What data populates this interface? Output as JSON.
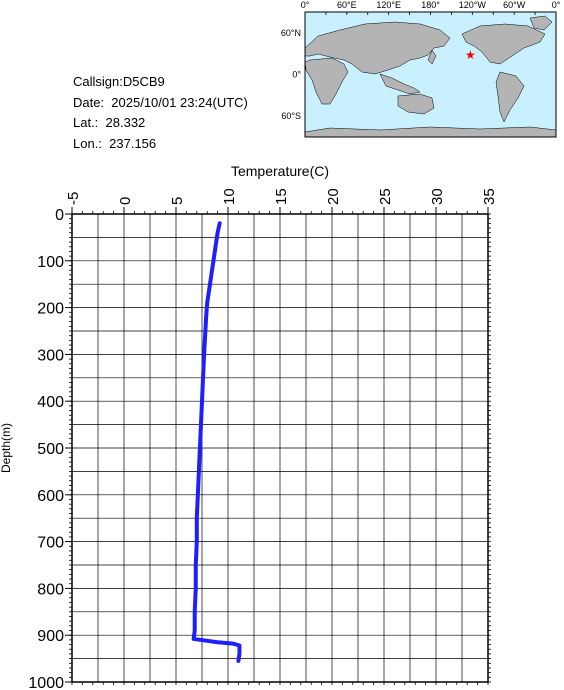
{
  "info": {
    "callsign": "Callsign:D5CB9",
    "date": "Date:  2025/10/01 23:24(UTC)",
    "lat": "Lat.:  28.332",
    "lon": "Lon.:  237.156"
  },
  "map": {
    "lon_labels": [
      "0°",
      "60°E",
      "120°E",
      "180°",
      "120°W",
      "60°W",
      "0°"
    ],
    "lat_labels": [
      "60°N",
      "0°",
      "60°S"
    ],
    "station_marker": {
      "lat": 28.332,
      "lon": 237.156,
      "symbol": "★"
    },
    "colors": {
      "ocean": "#c8f0ff",
      "land": "#b4b4b4",
      "marker": "#ff0000"
    }
  },
  "chart_data": {
    "type": "line",
    "xlabel": "Temperature(C)",
    "ylabel": "Depth(m)",
    "xlim": [
      -5,
      35
    ],
    "ylim": [
      0,
      1000
    ],
    "x_ticks": [
      "-5",
      "0",
      "5",
      "10",
      "15",
      "20",
      "25",
      "30",
      "35"
    ],
    "y_ticks": [
      "0",
      "100",
      "200",
      "300",
      "400",
      "500",
      "600",
      "700",
      "800",
      "900",
      "1000"
    ],
    "grid": true,
    "series": [
      {
        "color": "#1e1eff",
        "points": [
          [
            9.2,
            20
          ],
          [
            9.0,
            40
          ],
          [
            8.8,
            70
          ],
          [
            8.6,
            100
          ],
          [
            8.4,
            130
          ],
          [
            8.2,
            160
          ],
          [
            8.0,
            190
          ],
          [
            7.9,
            220
          ],
          [
            7.8,
            260
          ],
          [
            7.7,
            300
          ],
          [
            7.6,
            350
          ],
          [
            7.5,
            400
          ],
          [
            7.4,
            450
          ],
          [
            7.3,
            500
          ],
          [
            7.2,
            550
          ],
          [
            7.1,
            600
          ],
          [
            7.0,
            650
          ],
          [
            7.0,
            700
          ],
          [
            6.9,
            750
          ],
          [
            6.9,
            800
          ],
          [
            6.8,
            850
          ],
          [
            6.8,
            890
          ],
          [
            6.7,
            908
          ],
          [
            8.0,
            912
          ],
          [
            9.0,
            915
          ],
          [
            10.5,
            918
          ],
          [
            11.1,
            922
          ],
          [
            11.1,
            940
          ],
          [
            11.0,
            955
          ]
        ]
      }
    ]
  }
}
